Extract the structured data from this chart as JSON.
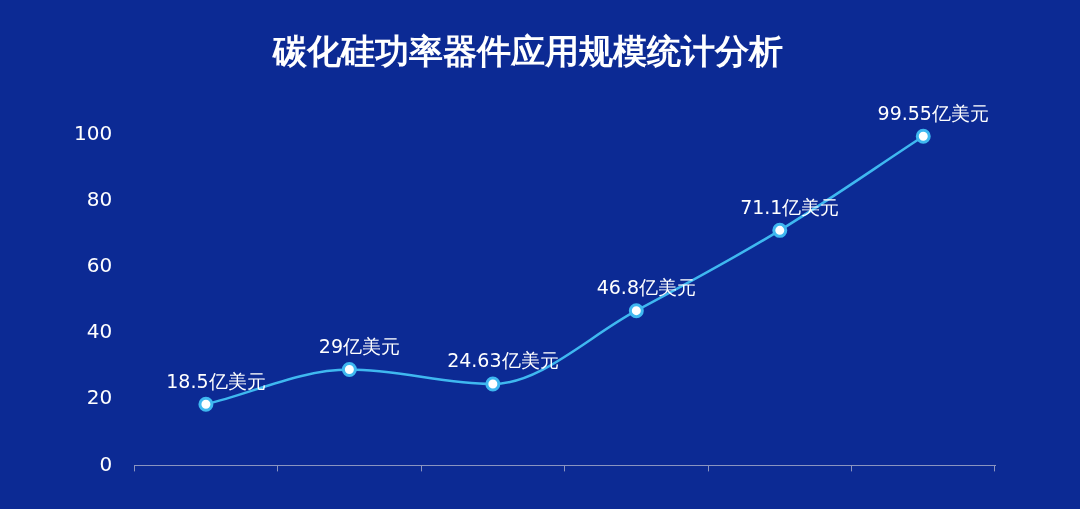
{
  "chart_data": {
    "type": "line",
    "title": "碳化硅功率器件应用规模统计分析",
    "categories": [
      null,
      null,
      null,
      null,
      null,
      null
    ],
    "series": [
      {
        "color": "#3fb8f0",
        "values": [
          18.5,
          29,
          24.63,
          46.8,
          71.1,
          99.55
        ],
        "value_labels": [
          "18.5亿美元",
          "29亿美元",
          "24.63亿美元",
          "46.8亿美元",
          "71.1亿美元",
          "99.55亿美元"
        ]
      }
    ],
    "ylim": [
      0,
      100
    ],
    "yticks": [
      0,
      20,
      40,
      60,
      80,
      100
    ],
    "grid": false,
    "legend": false,
    "marker": "circle",
    "line_style": "solid"
  }
}
